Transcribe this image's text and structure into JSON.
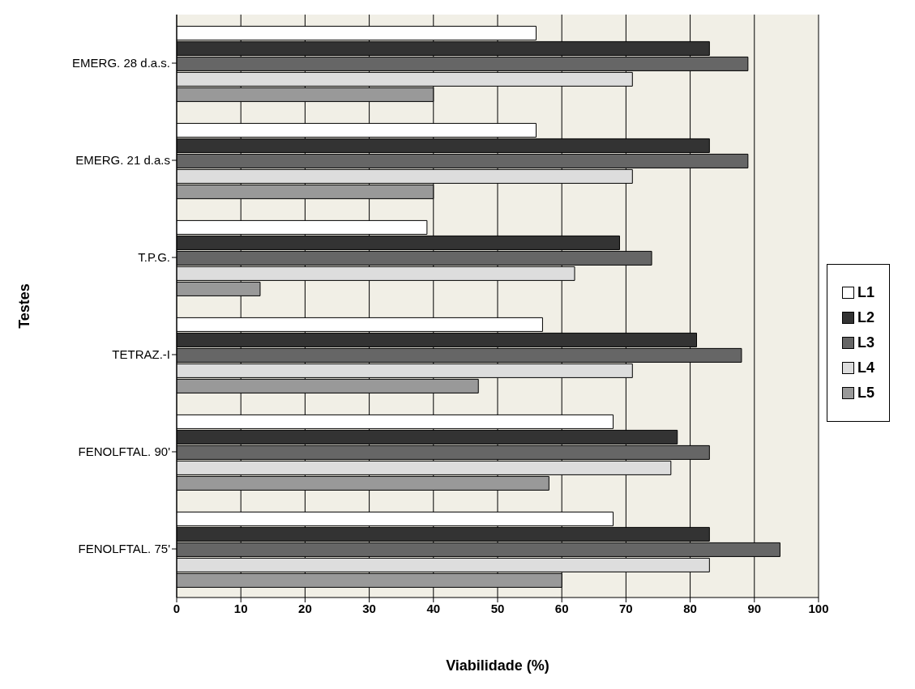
{
  "chart_data": {
    "type": "bar",
    "orientation": "horizontal",
    "xlabel": "Viabilidade (%)",
    "ylabel": "Testes",
    "categories": [
      "EMERG. 28 d.a.s.",
      "EMERG. 21 d.a.s",
      "T.P.G.",
      "TETRAZ.-I",
      "FENOLFTAL. 90'",
      "FENOLFTAL. 75'"
    ],
    "series": [
      {
        "name": "L1",
        "color": "#ffffff",
        "values": [
          56,
          56,
          39,
          57,
          68,
          68
        ]
      },
      {
        "name": "L2",
        "color": "#333333",
        "values": [
          83,
          83,
          69,
          81,
          78,
          83
        ]
      },
      {
        "name": "L3",
        "color": "#666666",
        "values": [
          89,
          89,
          74,
          88,
          83,
          94
        ]
      },
      {
        "name": "L4",
        "color": "#dddddd",
        "values": [
          71,
          71,
          62,
          71,
          77,
          83
        ]
      },
      {
        "name": "L5",
        "color": "#999999",
        "values": [
          40,
          40,
          13,
          47,
          58,
          60
        ]
      }
    ],
    "xlim": [
      0,
      100
    ],
    "xticks": [
      0,
      10,
      20,
      30,
      40,
      50,
      60,
      70,
      80,
      90,
      100
    ],
    "grid": "x",
    "legend": "right"
  }
}
